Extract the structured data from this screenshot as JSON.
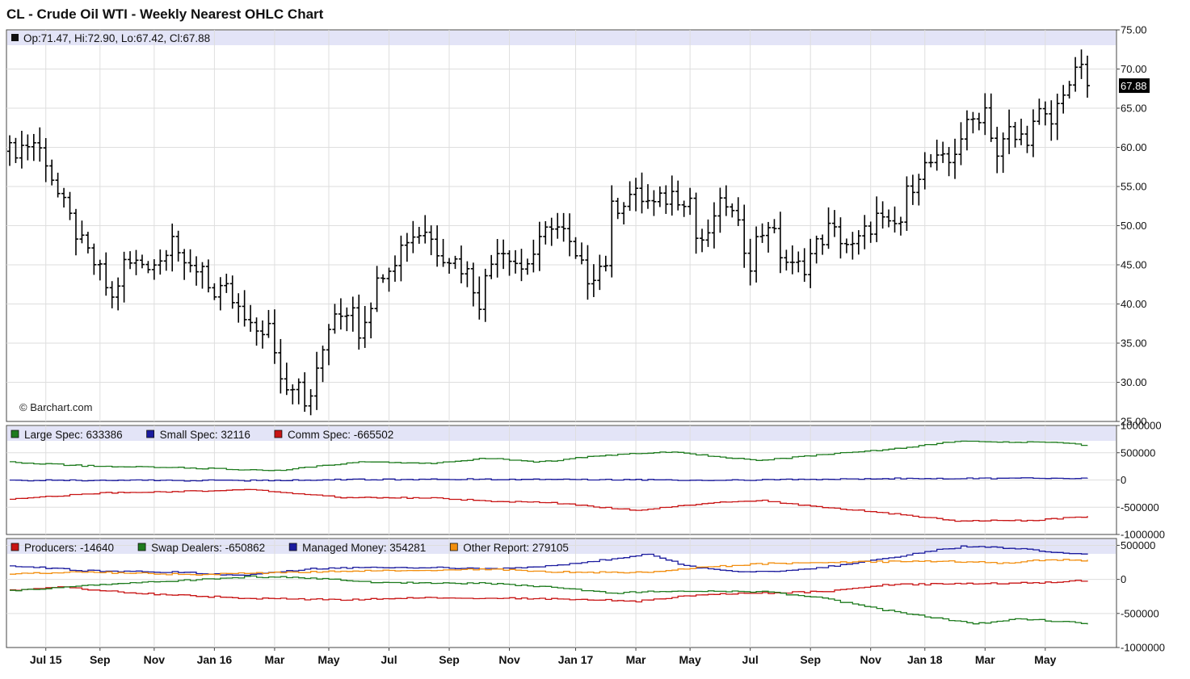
{
  "title": "CL - Crude Oil WTI - Weekly Nearest OHLC Chart",
  "credit": "© Barchart.com",
  "chart_data": [
    {
      "type": "ohlc",
      "panel": "price",
      "legend": "Op:71.47, Hi:72.90, Lo:67.42, Cl:67.88",
      "last_label": "67.88",
      "last_close": 67.88,
      "ylim": [
        25,
        75
      ],
      "yticks": [
        "75.00",
        "70.00",
        "65.00",
        "60.00",
        "55.00",
        "50.00",
        "45.00",
        "40.00",
        "35.00",
        "30.00",
        "25.00"
      ],
      "anchors": [
        [
          0,
          59.5
        ],
        [
          4,
          60.7
        ],
        [
          6,
          58.5
        ],
        [
          8,
          54
        ],
        [
          12,
          47.5
        ],
        [
          15,
          44
        ],
        [
          17,
          40.5
        ],
        [
          19,
          45
        ],
        [
          25,
          45.5
        ],
        [
          27,
          49.5
        ],
        [
          29,
          44
        ],
        [
          32,
          45
        ],
        [
          34,
          40.7
        ],
        [
          36,
          41.5
        ],
        [
          40,
          36.5
        ],
        [
          43,
          37
        ],
        [
          44,
          33
        ],
        [
          46,
          29
        ],
        [
          48,
          31
        ],
        [
          49,
          27.5
        ],
        [
          51,
          31
        ],
        [
          53,
          37
        ],
        [
          55,
          38.5
        ],
        [
          57,
          40
        ],
        [
          58,
          36.5
        ],
        [
          60,
          40.5
        ],
        [
          62,
          44.5
        ],
        [
          64,
          46
        ],
        [
          66,
          48.5
        ],
        [
          69,
          49.5
        ],
        [
          71,
          47
        ],
        [
          74,
          45.5
        ],
        [
          76,
          44
        ],
        [
          78,
          40.5
        ],
        [
          79,
          43
        ],
        [
          81,
          47.5
        ],
        [
          83,
          46.5
        ],
        [
          85,
          44.5
        ],
        [
          86,
          45.5
        ],
        [
          88,
          47.5
        ],
        [
          90,
          50.5
        ],
        [
          92,
          49
        ],
        [
          94,
          45.5
        ],
        [
          96,
          43.5
        ],
        [
          99,
          45.5
        ],
        [
          100,
          52
        ],
        [
          103,
          54
        ],
        [
          105,
          53.5
        ],
        [
          107,
          52.5
        ],
        [
          110,
          54
        ],
        [
          113,
          53.5
        ],
        [
          114,
          48.5
        ],
        [
          116,
          48
        ],
        [
          117,
          51.5
        ],
        [
          119,
          53
        ],
        [
          121,
          49.5
        ],
        [
          123,
          45.5
        ],
        [
          124,
          48
        ],
        [
          126,
          50.5
        ],
        [
          128,
          46.5
        ],
        [
          130,
          44.5
        ],
        [
          132,
          45
        ],
        [
          134,
          47.5
        ],
        [
          136,
          49.5
        ],
        [
          138,
          48.5
        ],
        [
          140,
          47
        ],
        [
          142,
          49
        ],
        [
          144,
          51
        ],
        [
          146,
          49.5
        ],
        [
          148,
          50.5
        ],
        [
          149,
          54
        ],
        [
          151,
          57
        ],
        [
          153,
          58
        ],
        [
          156,
          58
        ],
        [
          158,
          61.5
        ],
        [
          160,
          63.5
        ],
        [
          162,
          65
        ],
        [
          164,
          59
        ],
        [
          166,
          62
        ],
        [
          167,
          61
        ],
        [
          169,
          61.5
        ],
        [
          171,
          64
        ],
        [
          173,
          63
        ],
        [
          175,
          67.5
        ],
        [
          177,
          69
        ],
        [
          178,
          71
        ],
        [
          179,
          68
        ]
      ],
      "weeks": 180,
      "xticks": [
        {
          "label": "Jul 15",
          "week": 6
        },
        {
          "label": "Sep",
          "week": 15
        },
        {
          "label": "Nov",
          "week": 24
        },
        {
          "label": "Jan 16",
          "week": 34
        },
        {
          "label": "Mar",
          "week": 44
        },
        {
          "label": "May",
          "week": 53
        },
        {
          "label": "Jul",
          "week": 63
        },
        {
          "label": "Sep",
          "week": 73
        },
        {
          "label": "Nov",
          "week": 83
        },
        {
          "label": "Jan 17",
          "week": 94
        },
        {
          "label": "Mar",
          "week": 104
        },
        {
          "label": "May",
          "week": 113
        },
        {
          "label": "Jul",
          "week": 123
        },
        {
          "label": "Sep",
          "week": 133
        },
        {
          "label": "Nov",
          "week": 143
        },
        {
          "label": "Jan 18",
          "week": 152
        },
        {
          "label": "Mar",
          "week": 162
        },
        {
          "label": "May",
          "week": 172
        }
      ]
    },
    {
      "type": "line",
      "panel": "commitments-1",
      "ylim": [
        -1000000,
        1000000
      ],
      "yticks": [
        "1000000",
        "500000",
        "0",
        "-500000",
        "-1000000"
      ],
      "series": [
        {
          "name": "Large Spec: 633386",
          "color": "#1e7b1e",
          "anchors": [
            [
              0,
              330000
            ],
            [
              12,
              260000
            ],
            [
              30,
              220000
            ],
            [
              44,
              170000
            ],
            [
              58,
              330000
            ],
            [
              70,
              300000
            ],
            [
              79,
              400000
            ],
            [
              88,
              330000
            ],
            [
              98,
              450000
            ],
            [
              110,
              520000
            ],
            [
              118,
              420000
            ],
            [
              125,
              360000
            ],
            [
              132,
              440000
            ],
            [
              145,
              550000
            ],
            [
              158,
              720000
            ],
            [
              166,
              690000
            ],
            [
              172,
              700000
            ],
            [
              179,
              633386
            ]
          ]
        },
        {
          "name": "Small Spec: 32116",
          "color": "#1a1a9e",
          "anchors": [
            [
              0,
              -5000
            ],
            [
              40,
              -10000
            ],
            [
              60,
              10000
            ],
            [
              90,
              15000
            ],
            [
              120,
              -5000
            ],
            [
              150,
              30000
            ],
            [
              179,
              32116
            ]
          ]
        },
        {
          "name": "Comm Spec: -665502",
          "color": "#c81414",
          "anchors": [
            [
              0,
              -350000
            ],
            [
              15,
              -240000
            ],
            [
              40,
              -180000
            ],
            [
              55,
              -320000
            ],
            [
              70,
              -330000
            ],
            [
              80,
              -390000
            ],
            [
              90,
              -420000
            ],
            [
              104,
              -560000
            ],
            [
              118,
              -400000
            ],
            [
              125,
              -380000
            ],
            [
              132,
              -470000
            ],
            [
              145,
              -600000
            ],
            [
              157,
              -750000
            ],
            [
              170,
              -740000
            ],
            [
              179,
              -665502
            ]
          ]
        }
      ]
    },
    {
      "type": "line",
      "panel": "commitments-2",
      "ylim": [
        -1000000,
        600000
      ],
      "yticks": [
        "500000",
        "0",
        "-500000",
        "-1000000"
      ],
      "series": [
        {
          "name": "Producers: -14640",
          "color": "#c81414",
          "anchors": [
            [
              0,
              -160000
            ],
            [
              8,
              -110000
            ],
            [
              20,
              -200000
            ],
            [
              40,
              -280000
            ],
            [
              55,
              -300000
            ],
            [
              70,
              -270000
            ],
            [
              85,
              -280000
            ],
            [
              98,
              -300000
            ],
            [
              104,
              -320000
            ],
            [
              115,
              -220000
            ],
            [
              125,
              -200000
            ],
            [
              135,
              -180000
            ],
            [
              145,
              -80000
            ],
            [
              160,
              -60000
            ],
            [
              170,
              -50000
            ],
            [
              179,
              -14640
            ]
          ]
        },
        {
          "name": "Swap Dealers: -650862",
          "color": "#1e7b1e",
          "anchors": [
            [
              0,
              -170000
            ],
            [
              15,
              -80000
            ],
            [
              40,
              40000
            ],
            [
              50,
              20000
            ],
            [
              60,
              -40000
            ],
            [
              80,
              -60000
            ],
            [
              90,
              -120000
            ],
            [
              100,
              -200000
            ],
            [
              110,
              -170000
            ],
            [
              125,
              -180000
            ],
            [
              135,
              -280000
            ],
            [
              145,
              -450000
            ],
            [
              160,
              -650000
            ],
            [
              168,
              -580000
            ],
            [
              179,
              -650862
            ]
          ]
        },
        {
          "name": "Managed Money: 354281",
          "color": "#1a1a9e",
          "anchors": [
            [
              0,
              200000
            ],
            [
              12,
              130000
            ],
            [
              30,
              100000
            ],
            [
              38,
              60000
            ],
            [
              50,
              160000
            ],
            [
              62,
              180000
            ],
            [
              72,
              170000
            ],
            [
              80,
              150000
            ],
            [
              90,
              200000
            ],
            [
              100,
              300000
            ],
            [
              106,
              380000
            ],
            [
              112,
              200000
            ],
            [
              120,
              110000
            ],
            [
              130,
              130000
            ],
            [
              140,
              230000
            ],
            [
              150,
              380000
            ],
            [
              158,
              480000
            ],
            [
              166,
              460000
            ],
            [
              172,
              410000
            ],
            [
              179,
              354281
            ]
          ]
        },
        {
          "name": "Other Report: 279105",
          "color": "#f28e0e",
          "anchors": [
            [
              0,
              80000
            ],
            [
              12,
              110000
            ],
            [
              30,
              70000
            ],
            [
              50,
              110000
            ],
            [
              65,
              130000
            ],
            [
              80,
              150000
            ],
            [
              90,
              110000
            ],
            [
              105,
              100000
            ],
            [
              115,
              180000
            ],
            [
              125,
              230000
            ],
            [
              135,
              250000
            ],
            [
              145,
              260000
            ],
            [
              155,
              270000
            ],
            [
              165,
              240000
            ],
            [
              172,
              290000
            ],
            [
              179,
              279105
            ]
          ]
        }
      ]
    }
  ]
}
